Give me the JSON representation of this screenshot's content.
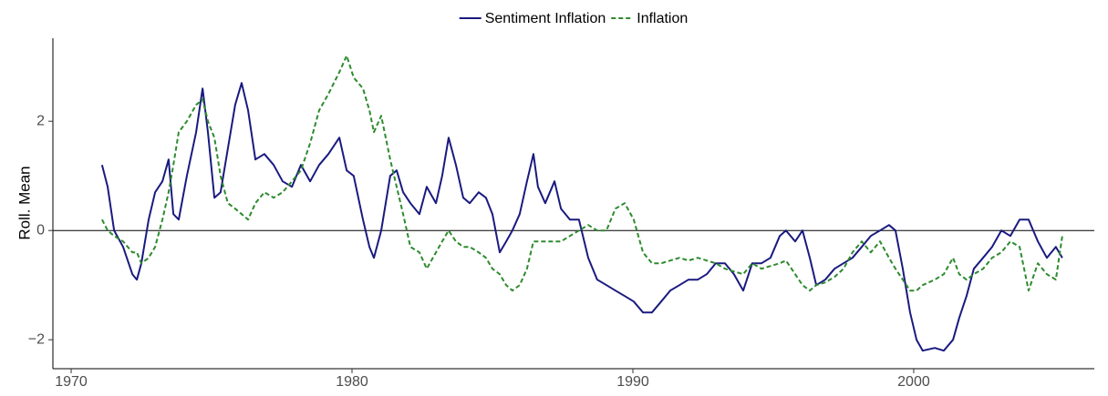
{
  "chart_data": {
    "type": "line",
    "y_label": "Roll. Mean",
    "xlim": [
      1969.35,
      2006.43
    ],
    "xticks": [
      1970,
      1980,
      1990,
      2000
    ],
    "ylim": [
      -2.53,
      3.52
    ],
    "yticks": [
      {
        "value": -2,
        "label": "−2"
      },
      0,
      2
    ],
    "hline": 0,
    "legend": "top",
    "x": [
      1971.1,
      1971.3,
      1971.53,
      1971.85,
      1972.18,
      1972.34,
      1972.5,
      1972.76,
      1972.99,
      1973.25,
      1973.47,
      1973.64,
      1973.83,
      1974.12,
      1974.45,
      1974.68,
      1974.87,
      1975.1,
      1975.32,
      1975.58,
      1975.84,
      1976.07,
      1976.3,
      1976.56,
      1976.88,
      1977.21,
      1977.53,
      1977.86,
      1978.18,
      1978.51,
      1978.83,
      1979.16,
      1979.55,
      1979.81,
      1980.06,
      1980.39,
      1980.62,
      1980.78,
      1981.04,
      1981.36,
      1981.59,
      1981.82,
      1982.08,
      1982.4,
      1982.66,
      1982.99,
      1983.21,
      1983.44,
      1983.7,
      1983.96,
      1984.19,
      1984.51,
      1984.77,
      1985.0,
      1985.26,
      1985.49,
      1985.71,
      1985.97,
      1986.23,
      1986.46,
      1986.62,
      1986.88,
      1987.21,
      1987.44,
      1987.76,
      1988.08,
      1988.41,
      1988.73,
      1989.06,
      1989.38,
      1989.71,
      1990.03,
      1990.36,
      1990.68,
      1991.01,
      1991.33,
      1991.66,
      1991.98,
      1992.31,
      1992.63,
      1992.95,
      1993.28,
      1993.6,
      1993.93,
      1994.25,
      1994.58,
      1994.9,
      1995.23,
      1995.45,
      1995.78,
      1996.04,
      1996.3,
      1996.53,
      1996.85,
      1997.18,
      1997.5,
      1997.82,
      1998.15,
      1998.47,
      1998.8,
      1999.12,
      1999.35,
      1999.61,
      1999.87,
      2000.1,
      2000.32,
      2000.75,
      2001.07,
      2001.4,
      2001.62,
      2001.88,
      2002.14,
      2002.47,
      2002.79,
      2003.12,
      2003.44,
      2003.77,
      2004.09,
      2004.42,
      2004.74,
      2005.06,
      2005.29
    ],
    "series": [
      {
        "name": "Sentiment Inflation",
        "color": "#1a1a80",
        "dash": "solid",
        "values": [
          1.2,
          0.8,
          0.0,
          -0.3,
          -0.8,
          -0.9,
          -0.6,
          0.2,
          0.7,
          0.9,
          1.3,
          0.3,
          0.2,
          1.0,
          1.8,
          2.6,
          1.8,
          0.6,
          0.7,
          1.5,
          2.3,
          2.7,
          2.2,
          1.3,
          1.4,
          1.2,
          0.9,
          0.8,
          1.2,
          0.9,
          1.2,
          1.4,
          1.7,
          1.1,
          1.0,
          0.2,
          -0.3,
          -0.5,
          0.0,
          1.0,
          1.1,
          0.7,
          0.5,
          0.3,
          0.8,
          0.5,
          1.0,
          1.7,
          1.2,
          0.6,
          0.5,
          0.7,
          0.6,
          0.3,
          -0.4,
          -0.2,
          0.0,
          0.3,
          0.9,
          1.4,
          0.8,
          0.5,
          0.9,
          0.4,
          0.2,
          0.2,
          -0.5,
          -0.9,
          -1.0,
          -1.1,
          -1.2,
          -1.3,
          -1.5,
          -1.5,
          -1.3,
          -1.1,
          -1.0,
          -0.9,
          -0.9,
          -0.8,
          -0.6,
          -0.6,
          -0.8,
          -1.1,
          -0.6,
          -0.6,
          -0.5,
          -0.1,
          0.0,
          -0.2,
          0.0,
          -0.5,
          -1.0,
          -0.9,
          -0.7,
          -0.6,
          -0.5,
          -0.3,
          -0.1,
          0.0,
          0.1,
          0.0,
          -0.7,
          -1.5,
          -2.0,
          -2.2,
          -2.15,
          -2.2,
          -2.0,
          -1.6,
          -1.2,
          -0.7,
          -0.5,
          -0.3,
          0.0,
          -0.1,
          0.2,
          0.2,
          -0.2,
          -0.5,
          -0.3,
          -0.5
        ]
      },
      {
        "name": "Inflation",
        "color": "#2e8b2e",
        "dash": "dashed",
        "values": [
          0.2,
          0.0,
          -0.1,
          -0.2,
          -0.4,
          -0.4,
          -0.6,
          -0.5,
          -0.3,
          0.2,
          0.7,
          1.2,
          1.8,
          2.0,
          2.3,
          2.4,
          2.0,
          1.7,
          1.0,
          0.5,
          0.4,
          0.3,
          0.2,
          0.5,
          0.7,
          0.6,
          0.7,
          0.9,
          1.1,
          1.6,
          2.2,
          2.5,
          2.9,
          3.2,
          2.8,
          2.6,
          2.2,
          1.8,
          2.1,
          1.3,
          0.8,
          0.3,
          -0.3,
          -0.4,
          -0.7,
          -0.4,
          -0.2,
          0.0,
          -0.2,
          -0.3,
          -0.3,
          -0.4,
          -0.5,
          -0.7,
          -0.8,
          -1.0,
          -1.1,
          -1.0,
          -0.7,
          -0.2,
          -0.2,
          -0.2,
          -0.2,
          -0.2,
          -0.1,
          0.0,
          0.1,
          0.0,
          0.0,
          0.4,
          0.5,
          0.2,
          -0.4,
          -0.6,
          -0.6,
          -0.55,
          -0.5,
          -0.55,
          -0.5,
          -0.55,
          -0.6,
          -0.7,
          -0.75,
          -0.8,
          -0.6,
          -0.7,
          -0.65,
          -0.6,
          -0.55,
          -0.8,
          -1.0,
          -1.1,
          -1.0,
          -0.95,
          -0.85,
          -0.7,
          -0.4,
          -0.2,
          -0.4,
          -0.2,
          -0.5,
          -0.7,
          -0.9,
          -1.1,
          -1.1,
          -1.0,
          -0.9,
          -0.8,
          -0.5,
          -0.8,
          -0.9,
          -0.8,
          -0.7,
          -0.5,
          -0.4,
          -0.2,
          -0.3,
          -1.1,
          -0.6,
          -0.8,
          -0.9,
          -0.1
        ]
      }
    ]
  }
}
